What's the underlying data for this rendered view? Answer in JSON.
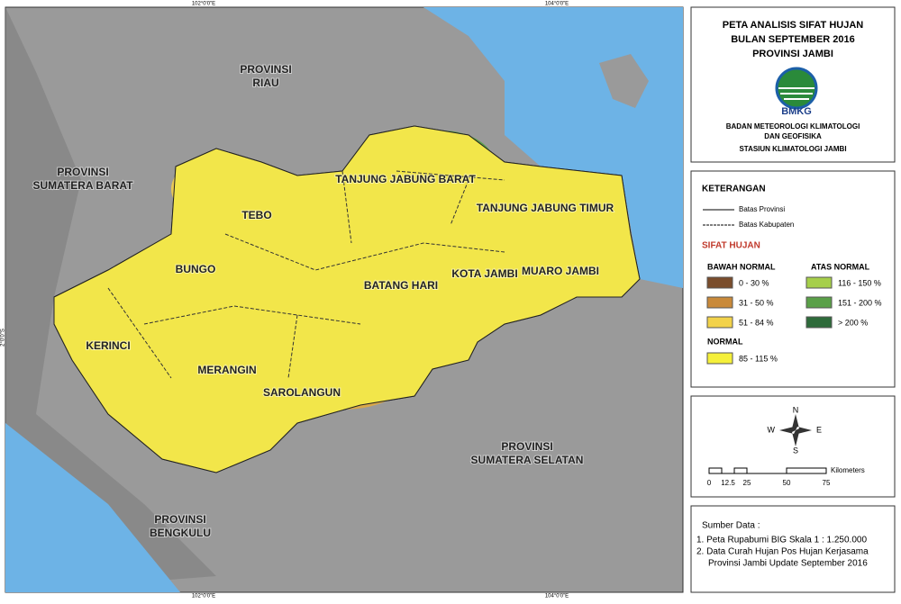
{
  "header": {
    "title": [
      "PETA ANALISIS SIFAT HUJAN",
      "BULAN SEPTEMBER 2016",
      "PROVINSI JAMBI"
    ],
    "logo": "BMKG",
    "agency": [
      "BADAN METEOROLOGI KLIMATOLOGI",
      "DAN GEOFISIKA"
    ],
    "station": "STASIUN KLIMATOLOGI JAMBI"
  },
  "legend": {
    "title": "KETERANGAN",
    "lines": [
      "Batas Provinsi",
      "Batas Kabupaten"
    ],
    "section": "SIFAT HUJAN",
    "below_normal": {
      "title": "BAWAH NORMAL",
      "classes": [
        "0 - 30 %",
        "31 - 50 %",
        "51 - 84 %"
      ]
    },
    "above_normal": {
      "title": "ATAS NORMAL",
      "classes": [
        "116 - 150 %",
        "151 - 200 %",
        "> 200 %"
      ]
    },
    "normal": {
      "title": "NORMAL",
      "classes": [
        "85 - 115 %"
      ]
    }
  },
  "compass": [
    "N",
    "E",
    "S",
    "W"
  ],
  "scale": {
    "ticks": [
      "0",
      "12.5",
      "25",
      "50",
      "75"
    ],
    "unit": "Kilometers"
  },
  "source": {
    "title": "Sumber Data :",
    "lines": [
      "1. Peta Rupabumi BIG Skala 1 : 1.250.000",
      "2. Data Curah Hujan Pos Hujan Kerjasama",
      "Provinsi Jambi Update September 2016"
    ]
  },
  "grid_labels": {
    "top": [
      "102°0'0\"E",
      "104°0'0\"E"
    ],
    "left": [
      "2°0'0\"S"
    ]
  },
  "map_labels": {
    "provinces": [
      "PROVINSI",
      "RIAU",
      "PROVINSI",
      "SUMATERA BARAT",
      "PROVINSI",
      "SUMATERA SELATAN",
      "PROVINSI",
      "BENGKULU"
    ],
    "regencies": [
      "TANJUNG JABUNG BARAT",
      "TEBO",
      "TANJUNG JABUNG TIMUR",
      "BUNGO",
      "KOTA JAMBI",
      "MUARO JAMBI",
      "BATANG HARI",
      "KERINCI",
      "MERANGIN",
      "SAROLANGUN"
    ]
  }
}
